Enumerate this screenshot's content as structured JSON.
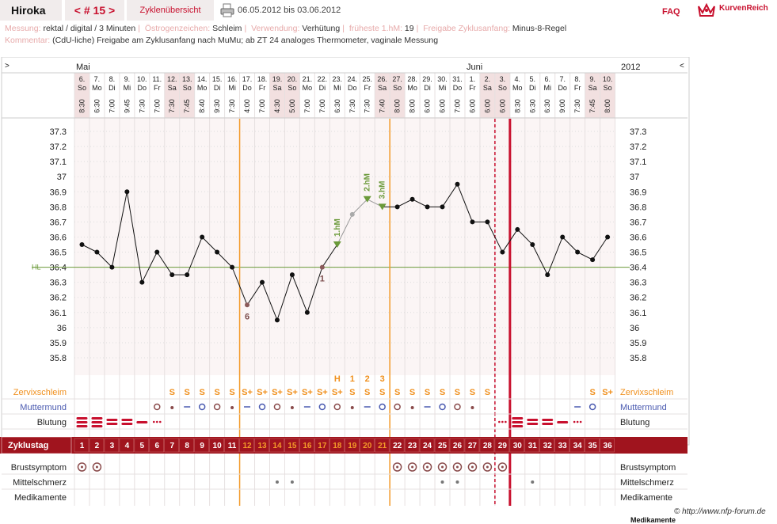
{
  "header": {
    "name": "Hiroka",
    "cycle_nav": "< # 15 >",
    "overview": "Zyklenübersicht",
    "date_range": "06.05.2012 bis 03.06.2012",
    "faq": "FAQ",
    "brand": "KurvenReich",
    "print_icon": "printer-icon"
  },
  "meta": {
    "messung_label": "Messung:",
    "messung": "rektal / digital / 3 Minuten",
    "oestrogen_label": "Östrogenzeichen:",
    "oestrogen": "Schleim",
    "verwendung_label": "Verwendung:",
    "verwendung": "Verhütung",
    "fruehest_label": "früheste 1.hM:",
    "fruehest": "19",
    "freigabe_label": "Freigabe Zyklusanfang:",
    "freigabe": "Minus-8-Regel",
    "kommentar_label": "Kommentar:",
    "kommentar": "(CdU-liche) Freigabe am Zyklusanfang nach MuMu;  ab ZT 24 analoges Thermometer, vaginale Messung"
  },
  "chart_data": {
    "type": "line",
    "months": [
      {
        "label": "Mai",
        "start_index": 0
      },
      {
        "label": "Juni",
        "start_index": 26
      }
    ],
    "year": "2012",
    "nav_left": ">",
    "nav_right": "<",
    "days": [
      "6.",
      "7.",
      "8.",
      "9.",
      "10.",
      "11.",
      "12.",
      "13.",
      "14.",
      "15.",
      "16.",
      "17.",
      "18.",
      "19.",
      "20.",
      "21.",
      "22.",
      "23.",
      "24.",
      "25.",
      "26.",
      "27.",
      "28.",
      "29.",
      "30.",
      "31.",
      "1.",
      "2.",
      "3.",
      "4.",
      "5.",
      "6.",
      "7.",
      "8.",
      "9.",
      "10."
    ],
    "weekdays": [
      "So",
      "Mo",
      "Di",
      "Mi",
      "Do",
      "Fr",
      "Sa",
      "So",
      "Mo",
      "Di",
      "Mi",
      "Do",
      "Fr",
      "Sa",
      "So",
      "Mo",
      "Di",
      "Mi",
      "Do",
      "Fr",
      "Sa",
      "So",
      "Mo",
      "Di",
      "Mi",
      "Do",
      "Fr",
      "Sa",
      "So",
      "Mo",
      "Di",
      "Mi",
      "Do",
      "Fr",
      "Sa",
      "So"
    ],
    "times": [
      "8:30",
      "6:30",
      "7:00",
      "9:45",
      "7:30",
      "7:00",
      "7:30",
      "7:45",
      "8:40",
      "9:30",
      "7:30",
      "4:00",
      "7:00",
      "4:30",
      "5:00",
      "7:00",
      "7:00",
      "6:30",
      "7:30",
      "7:30",
      "7:40",
      "8:00",
      "8:00",
      "6:00",
      "6:00",
      "7:00",
      "6:00",
      "6:00",
      "6:00",
      "8:30",
      "6:30",
      "6:30",
      "9:00",
      "7:30",
      "7:45",
      "8:00"
    ],
    "temps_cycle": [
      36.55,
      36.5,
      36.4,
      36.9,
      36.3,
      36.5,
      36.35,
      36.35,
      36.6,
      36.5,
      36.4,
      36.15,
      36.3,
      36.05,
      36.35,
      36.1,
      36.4,
      36.55,
      36.75,
      36.85,
      36.8,
      36.8,
      36.85,
      36.8,
      36.8,
      36.95,
      36.7,
      36.7,
      36.5
    ],
    "temps_next": [
      36.65,
      36.55,
      36.35,
      36.6,
      36.5,
      36.45,
      36.6
    ],
    "y_ticks": [
      "37.3",
      "37.2",
      "37.1",
      "37",
      "36.9",
      "36.8",
      "36.7",
      "36.6",
      "36.5",
      "36.4",
      "36.3",
      "36.2",
      "36.1",
      "36",
      "35.9",
      "35.8"
    ],
    "ylim": [
      35.8,
      37.3
    ],
    "coverline": {
      "value": 36.4,
      "label": "HL"
    },
    "low_labels": [
      {
        "day": 12,
        "text": "6"
      },
      {
        "day": 17,
        "text": "1"
      }
    ],
    "high_labels": [
      {
        "day": 18,
        "text": "1.hM"
      },
      {
        "day": 20,
        "text": "2.hM"
      },
      {
        "day": 21,
        "text": "3.hM"
      }
    ],
    "mucus_peak_labels": [
      {
        "day": 18,
        "text": "H"
      },
      {
        "day": 19,
        "text": "1"
      },
      {
        "day": 20,
        "text": "2"
      },
      {
        "day": 21,
        "text": "3"
      }
    ],
    "rows": {
      "zervixschleim": "Zervixschleim",
      "muttermund": "Muttermund",
      "blutung": "Blutung",
      "zyklustag": "Zyklustag",
      "brustsymptom": "Brustsymptom",
      "mittelschmerz": "Mittelschmerz",
      "medikamente": "Medikamente"
    },
    "mucus": [
      "",
      "",
      "",
      "",
      "",
      "",
      "S",
      "S",
      "S",
      "S",
      "S",
      "S+",
      "S+",
      "S+",
      "S+",
      "S+",
      "S+",
      "S+",
      "S",
      "S",
      "S",
      "S",
      "S",
      "S",
      "S",
      "S",
      "S",
      "S",
      "",
      "",
      "",
      "",
      "",
      "",
      "S",
      "S+"
    ],
    "blood": [
      "heavy",
      "heavy",
      "medium",
      "medium",
      "light",
      "spot",
      "",
      "",
      "",
      "",
      "",
      "",
      "",
      "",
      "",
      "",
      "",
      "",
      "",
      "",
      "",
      "",
      "",
      "",
      "",
      "",
      "",
      "",
      "spot",
      "heavy",
      "medium",
      "medium",
      "light",
      "spot",
      "",
      ""
    ],
    "breast": [
      1,
      1,
      0,
      0,
      0,
      0,
      0,
      0,
      0,
      0,
      0,
      0,
      0,
      0,
      0,
      0,
      0,
      0,
      0,
      0,
      0,
      1,
      1,
      1,
      1,
      1,
      1,
      1,
      1,
      0,
      0,
      0,
      0,
      0,
      0,
      0
    ],
    "mittelschmerz": [
      0,
      0,
      0,
      0,
      0,
      0,
      0,
      0,
      0,
      0,
      0,
      0,
      0,
      1,
      1,
      0,
      0,
      0,
      0,
      0,
      0,
      0,
      0,
      0,
      1,
      1,
      0,
      0,
      0,
      0,
      1,
      0,
      0,
      0,
      0,
      0
    ],
    "cycle_days": [
      "1",
      "2",
      "3",
      "4",
      "5",
      "6",
      "7",
      "8",
      "9",
      "10",
      "11",
      "12",
      "13",
      "14",
      "15",
      "16",
      "17",
      "18",
      "19",
      "20",
      "21",
      "22",
      "23",
      "24",
      "25",
      "26",
      "27",
      "28",
      "29",
      "30",
      "31",
      "32",
      "33",
      "34",
      "35",
      "36"
    ],
    "credit": "© http://www.nfp-forum.de",
    "clipped_label": "Medikamente"
  }
}
